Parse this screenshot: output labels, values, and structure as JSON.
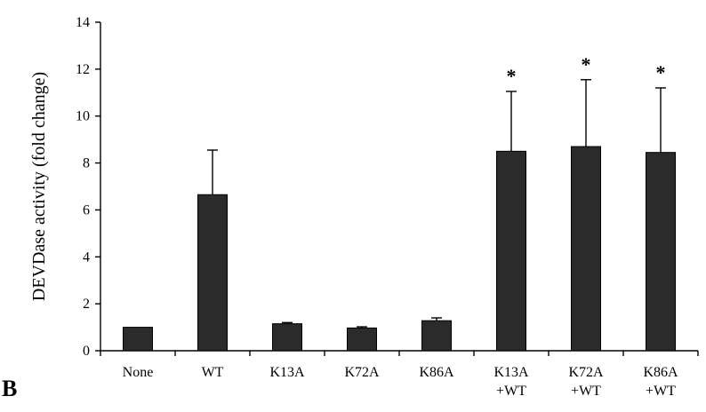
{
  "panel_letter": "B",
  "chart_data": {
    "type": "bar",
    "ylabel": "DEVDase activity (fold change)",
    "xlabel": "",
    "ylim": [
      0,
      14
    ],
    "yticks": [
      0,
      2,
      4,
      6,
      8,
      10,
      12,
      14
    ],
    "categories": [
      [
        "None"
      ],
      [
        "WT"
      ],
      [
        "K13A"
      ],
      [
        "K72A"
      ],
      [
        "K86A"
      ],
      [
        "K13A",
        "+WT"
      ],
      [
        "K72A",
        "+WT"
      ],
      [
        "K86A",
        "+WT"
      ]
    ],
    "values": [
      1.0,
      6.65,
      1.15,
      0.97,
      1.28,
      8.5,
      8.7,
      8.45
    ],
    "error_upper": [
      0,
      1.9,
      0.05,
      0.05,
      0.12,
      2.55,
      2.85,
      2.75
    ],
    "significance": [
      "",
      "",
      "",
      "",
      "",
      "*",
      "*",
      "*"
    ],
    "bar_color": "#2b2b2b",
    "grid": false,
    "legend": "none"
  }
}
